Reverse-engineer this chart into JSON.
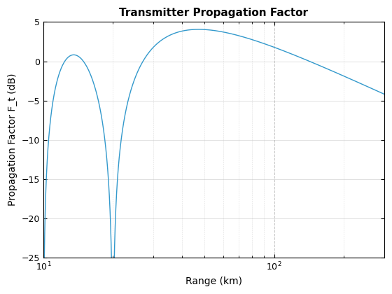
{
  "title": "Transmitter Propagation Factor",
  "xlabel": "Range (km)",
  "ylabel": "Propagation Factor F_t (dB)",
  "xlim": [
    10,
    300
  ],
  "ylim": [
    -25,
    5
  ],
  "line_color": "#3399cc",
  "line_width": 1.0,
  "background_color": "#ffffff",
  "grid_color": "#aaaaaa",
  "yticks": [
    5,
    0,
    -5,
    -10,
    -15,
    -20,
    -25
  ]
}
